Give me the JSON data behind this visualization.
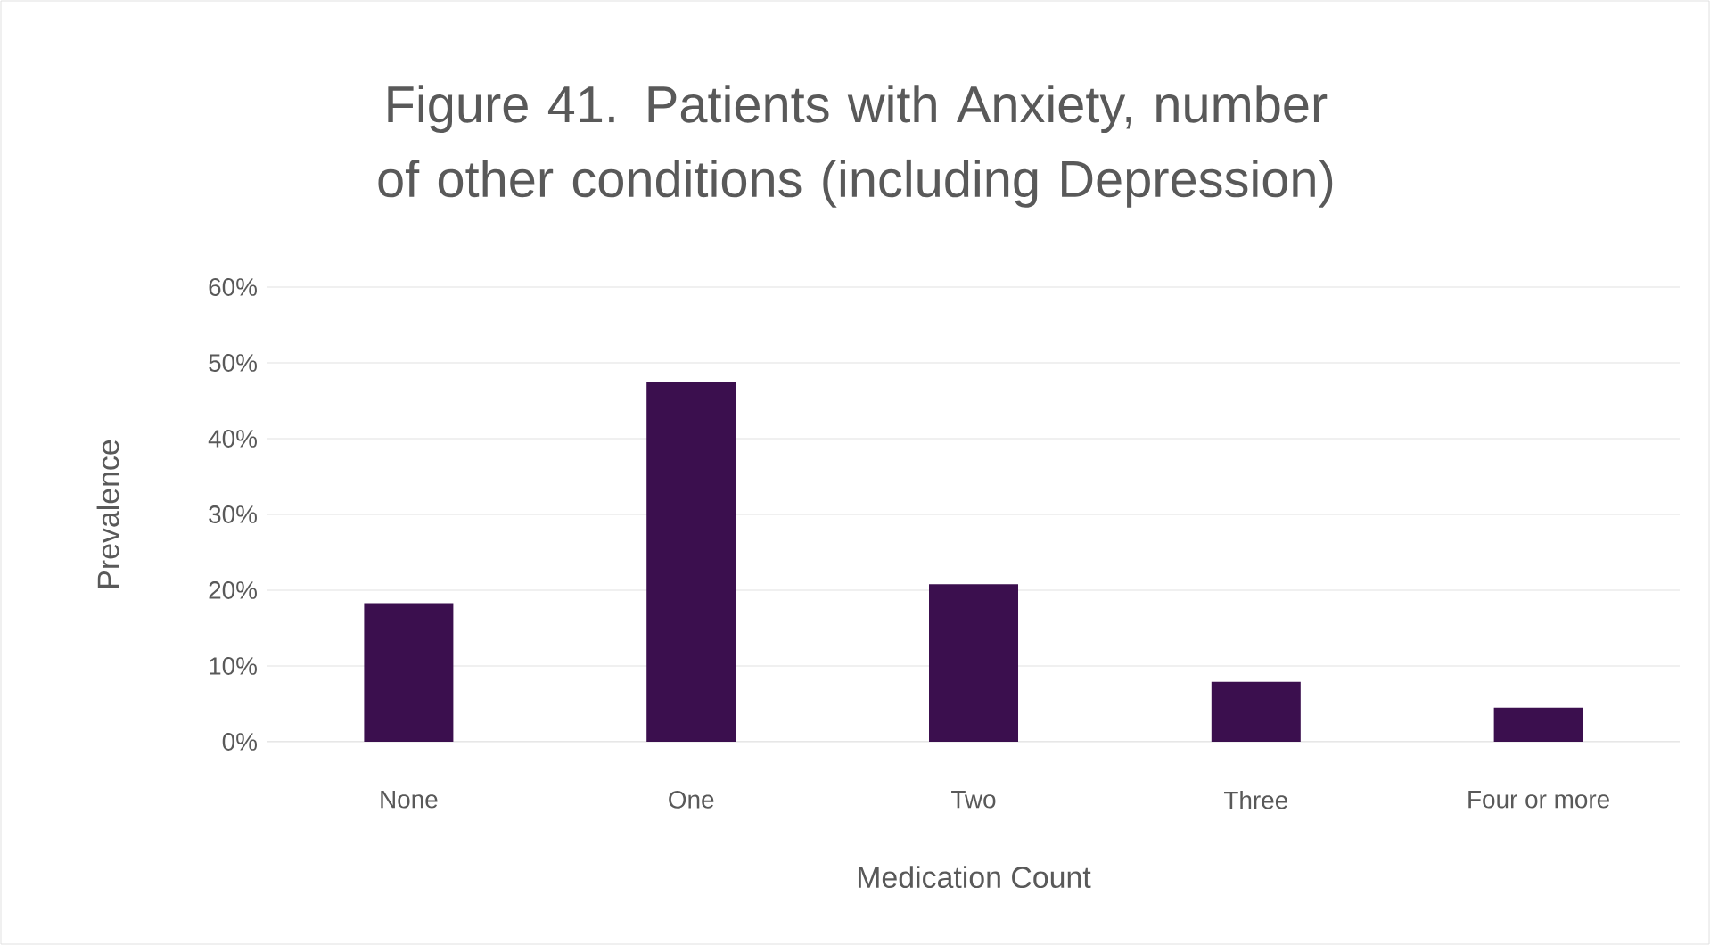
{
  "chart_data": {
    "type": "bar",
    "title": "Figure 41. Patients with Anxiety, number of other conditions (including Depression)",
    "xlabel": "Medication Count",
    "ylabel": "Prevalence",
    "categories": [
      "None",
      "One",
      "Two",
      "Three",
      "Four or more"
    ],
    "values": [
      18.3,
      47.5,
      20.8,
      7.9,
      4.5
    ],
    "color": "#3b0f4e",
    "ylim": [
      0,
      60
    ],
    "yticks": [
      {
        "value": 0,
        "label": "0%"
      },
      {
        "value": 10,
        "label": "10%"
      },
      {
        "value": 20,
        "label": "20%"
      },
      {
        "value": 30,
        "label": "30%"
      },
      {
        "value": 40,
        "label": "40%"
      },
      {
        "value": 50,
        "label": "50%"
      },
      {
        "value": 60,
        "label": "60%"
      }
    ],
    "grid": "y"
  }
}
